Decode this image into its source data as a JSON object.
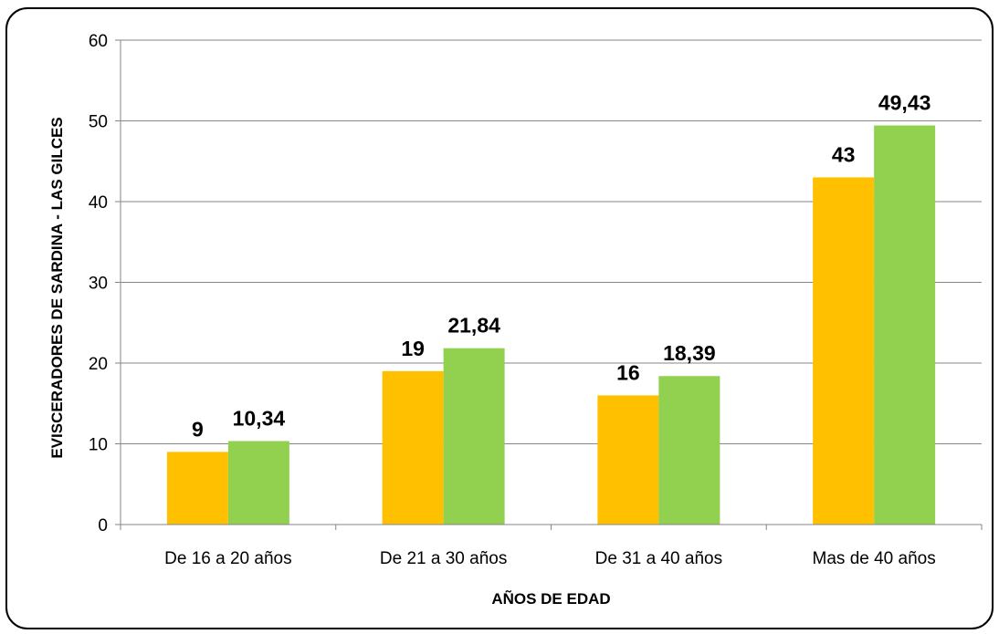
{
  "chart_data": {
    "type": "bar",
    "categories": [
      "De 16 a 20 años",
      "De 21 a 30 años",
      "De 31 a 40 años",
      "Mas de 40 años"
    ],
    "series": [
      {
        "values": [
          9,
          19,
          16,
          43
        ],
        "labels": [
          "9",
          "19",
          "16",
          "43"
        ],
        "color": "#FFC000"
      },
      {
        "values": [
          10.34,
          21.84,
          18.39,
          49.43
        ],
        "labels": [
          "10,34",
          "21,84",
          "18,39",
          "49,43"
        ],
        "color": "#92D050"
      }
    ],
    "title": "",
    "xlabel": "AÑOS DE EDAD",
    "ylabel": "EVISCERADORES DE SARDINA - LAS GILCES",
    "ylim": [
      0,
      60
    ],
    "yticks": [
      0,
      10,
      20,
      30,
      40,
      50,
      60
    ],
    "grid": true,
    "legend": "none"
  }
}
